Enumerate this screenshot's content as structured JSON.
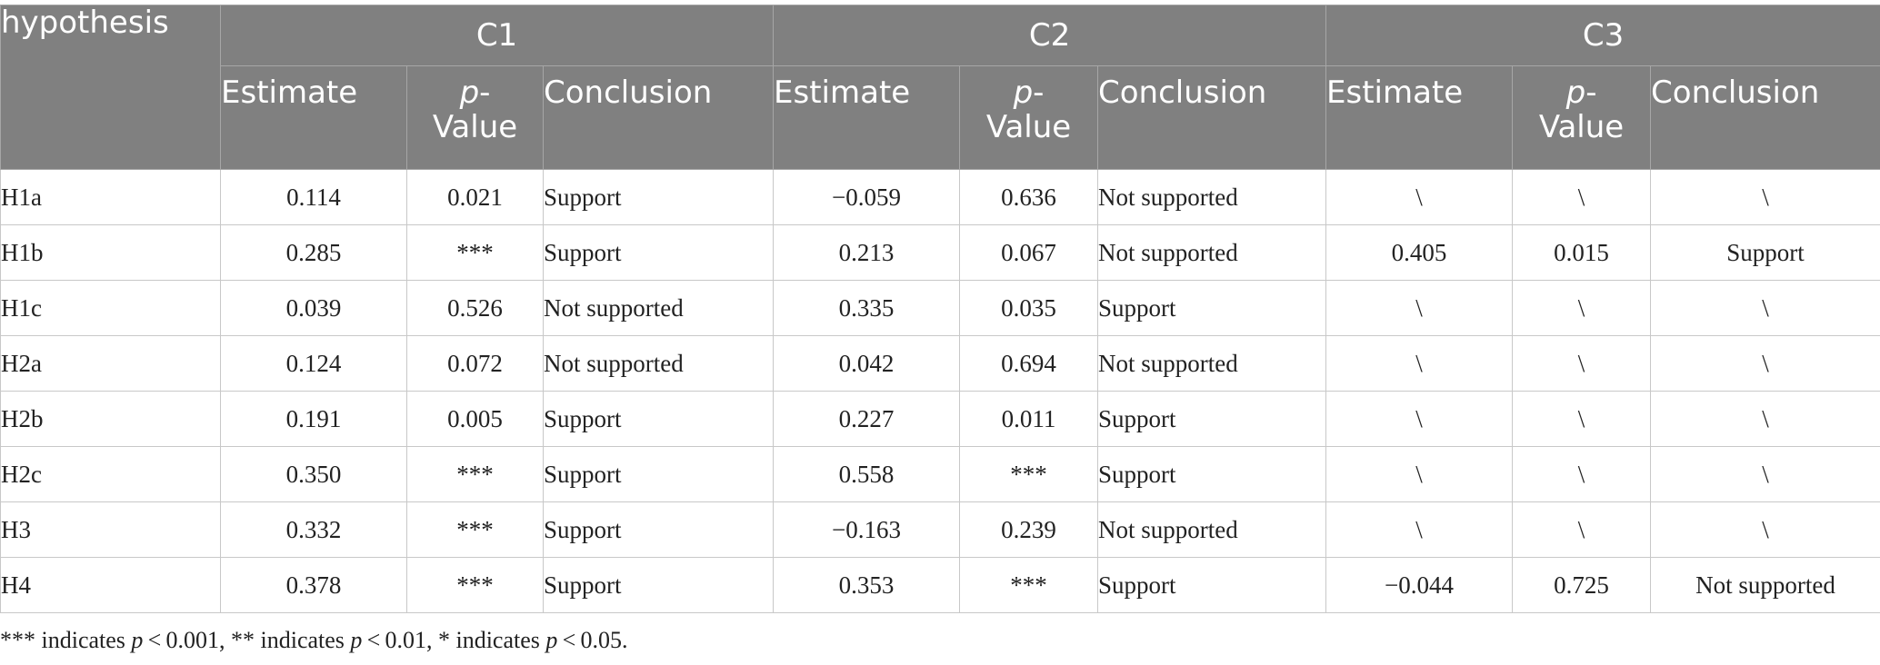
{
  "table": {
    "row_header": "hypothesis",
    "groups": [
      "C1",
      "C2",
      "C3"
    ],
    "subheaders": {
      "estimate": "Estimate",
      "p_italic": "p",
      "p_rest": "-",
      "p_value": "Value",
      "conclusion": "Conclusion"
    },
    "rows": [
      {
        "hyp": "H1a",
        "c1": [
          "0.114",
          "0.021",
          "Support"
        ],
        "c2": [
          "−0.059",
          "0.636",
          "Not supported"
        ],
        "c3": [
          "\\",
          "\\",
          "\\"
        ]
      },
      {
        "hyp": "H1b",
        "c1": [
          "0.285",
          "***",
          "Support"
        ],
        "c2": [
          "0.213",
          "0.067",
          "Not supported"
        ],
        "c3": [
          "0.405",
          "0.015",
          "Support"
        ]
      },
      {
        "hyp": "H1c",
        "c1": [
          "0.039",
          "0.526",
          "Not supported"
        ],
        "c2": [
          "0.335",
          "0.035",
          "Support"
        ],
        "c3": [
          "\\",
          "\\",
          "\\"
        ]
      },
      {
        "hyp": "H2a",
        "c1": [
          "0.124",
          "0.072",
          "Not supported"
        ],
        "c2": [
          "0.042",
          "0.694",
          "Not supported"
        ],
        "c3": [
          "\\",
          "\\",
          "\\"
        ]
      },
      {
        "hyp": "H2b",
        "c1": [
          "0.191",
          "0.005",
          "Support"
        ],
        "c2": [
          "0.227",
          "0.011",
          "Support"
        ],
        "c3": [
          "\\",
          "\\",
          "\\"
        ]
      },
      {
        "hyp": "H2c",
        "c1": [
          "0.350",
          "***",
          "Support"
        ],
        "c2": [
          "0.558",
          "***",
          "Support"
        ],
        "c3": [
          "\\",
          "\\",
          "\\"
        ]
      },
      {
        "hyp": "H3",
        "c1": [
          "0.332",
          "***",
          "Support"
        ],
        "c2": [
          "−0.163",
          "0.239",
          "Not supported"
        ],
        "c3": [
          "\\",
          "\\",
          "\\"
        ]
      },
      {
        "hyp": "H4",
        "c1": [
          "0.378",
          "***",
          "Support"
        ],
        "c2": [
          "0.353",
          "***",
          "Support"
        ],
        "c3": [
          "−0.044",
          "0.725",
          "Not supported"
        ]
      }
    ]
  },
  "footnote": {
    "parts": [
      {
        "text": "*** indicates ",
        "italic": false
      },
      {
        "text": "p",
        "italic": true
      },
      {
        "text": " < 0.001, ** indicates ",
        "italic": false
      },
      {
        "text": "p",
        "italic": true
      },
      {
        "text": " < 0.01, * indicates ",
        "italic": false
      },
      {
        "text": "p",
        "italic": true
      },
      {
        "text": " < 0.05.",
        "italic": false
      }
    ]
  }
}
